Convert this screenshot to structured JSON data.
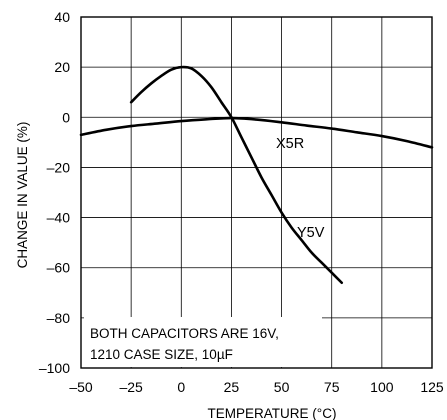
{
  "chart_data": {
    "type": "line",
    "xlabel": "TEMPERATURE (°C)",
    "ylabel": "CHANGE IN VALUE (%)",
    "xlim": [
      -50,
      125
    ],
    "ylim": [
      -100,
      40
    ],
    "xticks": [
      -50,
      -25,
      0,
      25,
      50,
      75,
      100,
      125
    ],
    "yticks": [
      40,
      20,
      0,
      -20,
      -40,
      -60,
      -80,
      -100
    ],
    "xtick_labels": [
      "–50",
      "–25",
      "0",
      "25",
      "50",
      "75",
      "100",
      "125"
    ],
    "ytick_labels": [
      "40",
      "20",
      "0",
      "–20",
      "–40",
      "–60",
      "–80",
      "–100"
    ],
    "grid": true,
    "annotation": [
      "BOTH CAPACITORS ARE 16V,",
      "1210 CASE SIZE, 10µF"
    ],
    "series": [
      {
        "name": "X5R",
        "x": [
          -50,
          -37.5,
          -25,
          -12.5,
          0,
          12.5,
          25,
          37.5,
          50,
          62.5,
          75,
          87.5,
          100,
          112.5,
          125
        ],
        "y": [
          -7,
          -5,
          -3.5,
          -2.5,
          -1.5,
          -0.8,
          -0.3,
          -0.9,
          -2,
          -3.3,
          -4.5,
          -6,
          -7.5,
          -9.5,
          -12
        ]
      },
      {
        "name": "Y5V",
        "x": [
          -25,
          -20,
          -15,
          -10,
          -5,
          0,
          5,
          10,
          15,
          20,
          25,
          30,
          35,
          40,
          45,
          50,
          55,
          60,
          65,
          70,
          75,
          80
        ],
        "y": [
          6,
          10,
          13.5,
          16.5,
          19,
          20,
          19.5,
          16.5,
          12,
          6,
          0,
          -8,
          -16,
          -24,
          -31,
          -38,
          -44,
          -49,
          -54,
          -58,
          -62,
          -66
        ]
      }
    ]
  }
}
